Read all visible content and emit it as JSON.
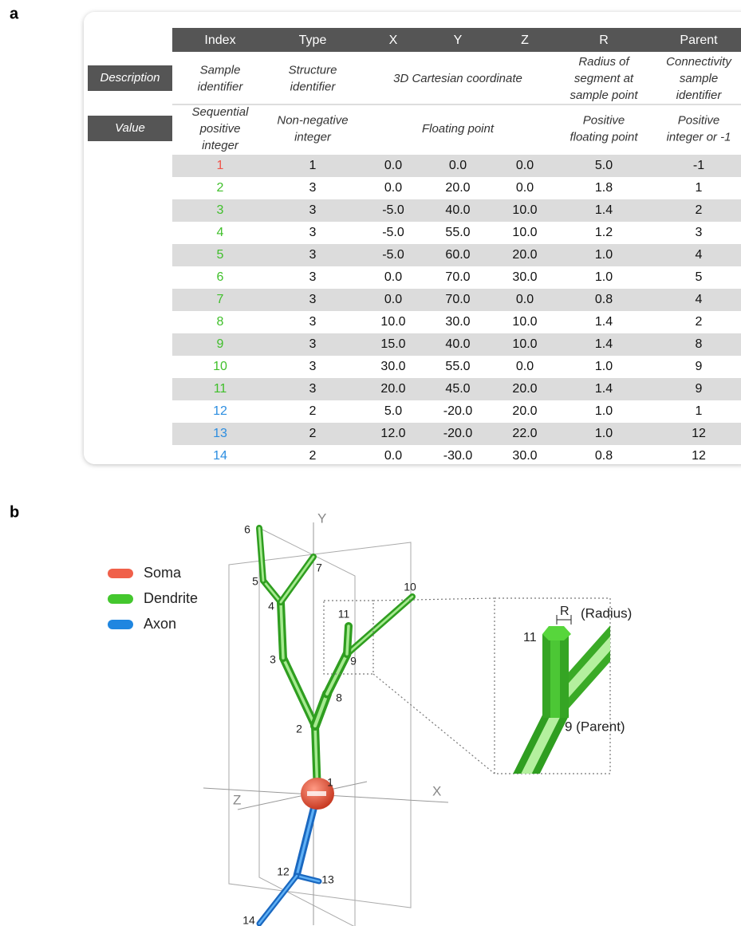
{
  "panel_a": {
    "label": "a",
    "table": {
      "headers": [
        "Index",
        "Type",
        "X",
        "Y",
        "Z",
        "R",
        "Parent"
      ],
      "description": {
        "label": "Description",
        "cells": [
          [
            "Sample",
            "identifier"
          ],
          [
            "Structure",
            "identifier"
          ],
          [
            "3D Cartesian coordinate"
          ],
          [
            "Radius of",
            "segment at",
            "sample point"
          ],
          [
            "Connectivity",
            "sample",
            "identifier"
          ]
        ]
      },
      "value": {
        "label": "Value",
        "cells": [
          [
            "Sequential",
            "positive",
            "integer"
          ],
          [
            "Non-negative",
            "integer"
          ],
          [
            "Floating point"
          ],
          [
            "Positive",
            "floating point"
          ],
          [
            "Positive",
            "integer or -1"
          ]
        ]
      },
      "rows": [
        {
          "cells": [
            "1",
            "1",
            "0.0",
            "0.0",
            "0.0",
            "5.0",
            "-1"
          ],
          "color": "#f0544a"
        },
        {
          "cells": [
            "2",
            "3",
            "0.0",
            "20.0",
            "0.0",
            "1.8",
            "1"
          ],
          "color": "#3fbf2a"
        },
        {
          "cells": [
            "3",
            "3",
            "-5.0",
            "40.0",
            "10.0",
            "1.4",
            "2"
          ],
          "color": "#3fbf2a"
        },
        {
          "cells": [
            "4",
            "3",
            "-5.0",
            "55.0",
            "10.0",
            "1.2",
            "3"
          ],
          "color": "#3fbf2a"
        },
        {
          "cells": [
            "5",
            "3",
            "-5.0",
            "60.0",
            "20.0",
            "1.0",
            "4"
          ],
          "color": "#3fbf2a"
        },
        {
          "cells": [
            "6",
            "3",
            "0.0",
            "70.0",
            "30.0",
            "1.0",
            "5"
          ],
          "color": "#3fbf2a"
        },
        {
          "cells": [
            "7",
            "3",
            "0.0",
            "70.0",
            "0.0",
            "0.8",
            "4"
          ],
          "color": "#3fbf2a"
        },
        {
          "cells": [
            "8",
            "3",
            "10.0",
            "30.0",
            "10.0",
            "1.4",
            "2"
          ],
          "color": "#3fbf2a"
        },
        {
          "cells": [
            "9",
            "3",
            "15.0",
            "40.0",
            "10.0",
            "1.4",
            "8"
          ],
          "color": "#3fbf2a"
        },
        {
          "cells": [
            "10",
            "3",
            "30.0",
            "55.0",
            "0.0",
            "1.0",
            "9"
          ],
          "color": "#3fbf2a"
        },
        {
          "cells": [
            "11",
            "3",
            "20.0",
            "45.0",
            "20.0",
            "1.4",
            "9"
          ],
          "color": "#3fbf2a"
        },
        {
          "cells": [
            "12",
            "2",
            "5.0",
            "-20.0",
            "20.0",
            "1.0",
            "1"
          ],
          "color": "#2b8de0"
        },
        {
          "cells": [
            "13",
            "2",
            "12.0",
            "-20.0",
            "22.0",
            "1.0",
            "12"
          ],
          "color": "#2b8de0"
        },
        {
          "cells": [
            "14",
            "2",
            "0.0",
            "-30.0",
            "30.0",
            "0.8",
            "12"
          ],
          "color": "#2b8de0"
        }
      ]
    }
  },
  "panel_b": {
    "label": "b",
    "legend": [
      {
        "label": "Soma",
        "color": "#f0604a"
      },
      {
        "label": "Dendrite",
        "color": "#44c72e"
      },
      {
        "label": "Axon",
        "color": "#1f86e0"
      }
    ],
    "axes": {
      "x": "X",
      "y": "Y",
      "z": "Z"
    },
    "nodes": [
      "1",
      "2",
      "3",
      "4",
      "5",
      "6",
      "7",
      "8",
      "9",
      "10",
      "11",
      "12",
      "13",
      "14"
    ],
    "inset": {
      "r": "R",
      "radius": "(Radius)",
      "node": "11",
      "parent": "9 (Parent)"
    }
  }
}
